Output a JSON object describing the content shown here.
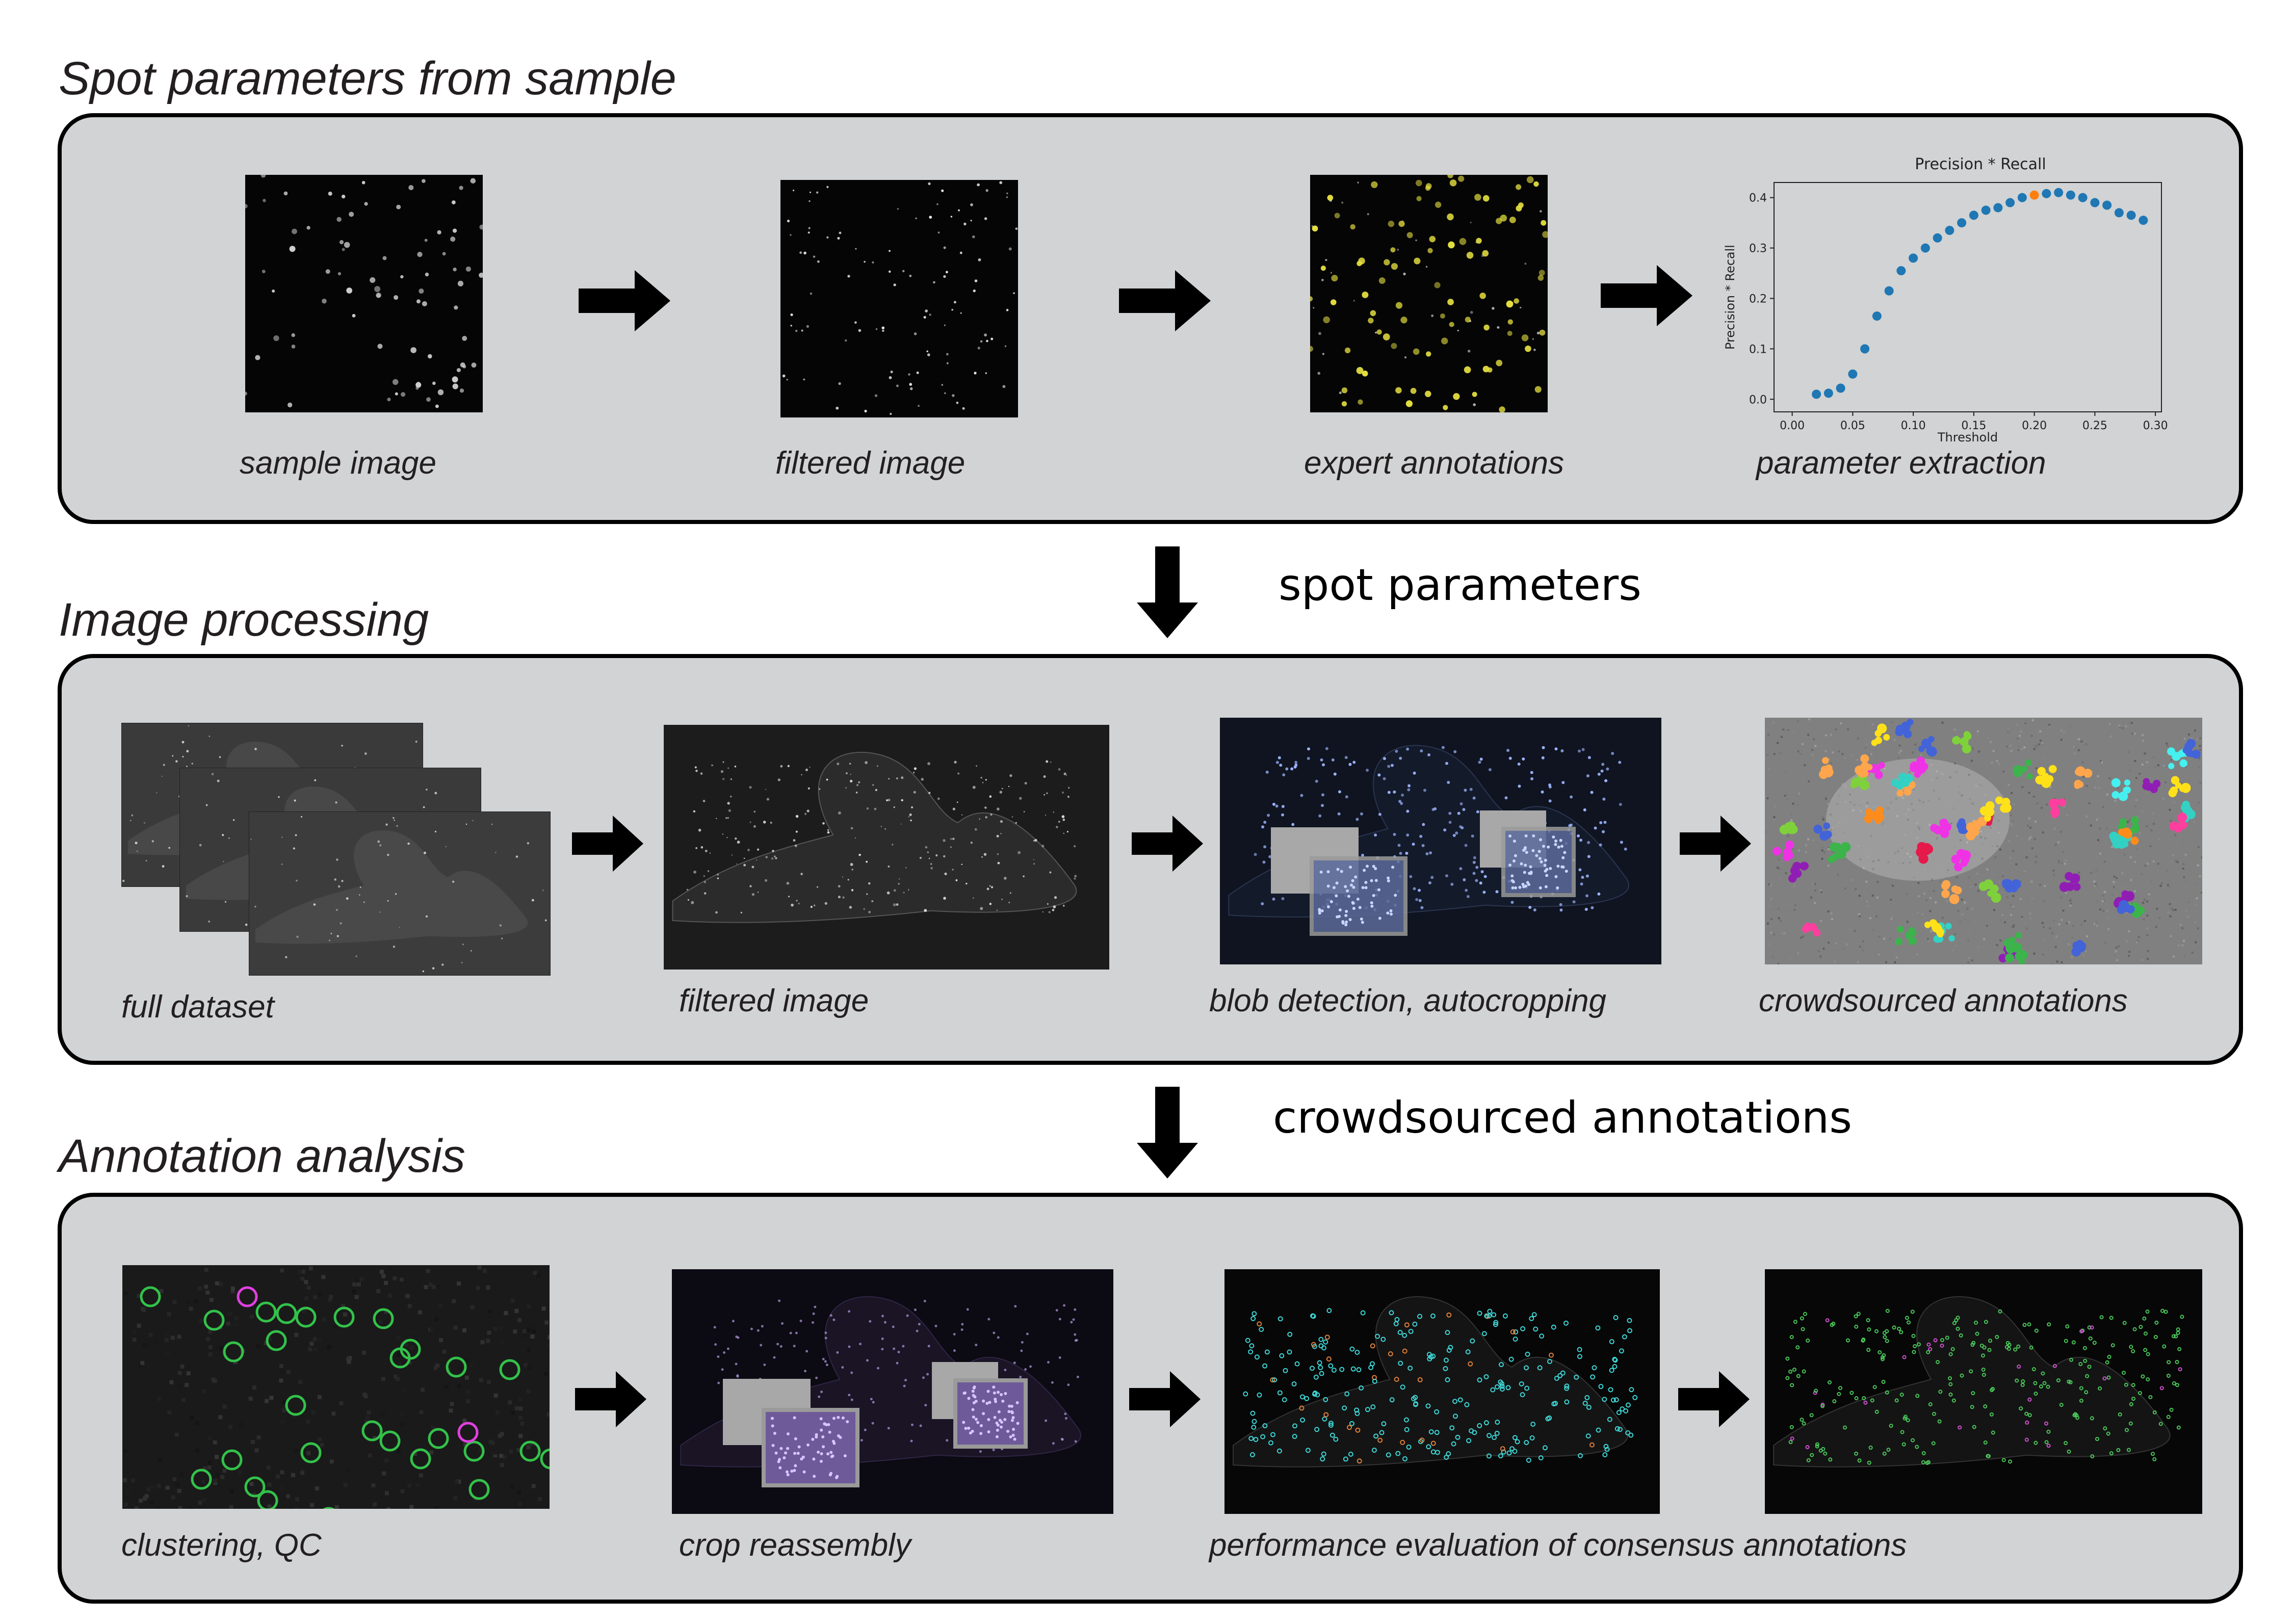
{
  "sections": {
    "spot": {
      "title": "Spot parameters from sample",
      "captions": [
        "sample image",
        "filtered image",
        "expert annotations",
        "parameter extraction"
      ]
    },
    "processing": {
      "title": "Image processing",
      "captions": [
        "full dataset",
        "filtered image",
        "blob detection, autocropping",
        "crowdsourced annotations"
      ]
    },
    "analysis": {
      "title": "Annotation analysis",
      "captions": [
        "clustering, QC",
        "crop reassembly",
        "performance evaluation of consensus annotations"
      ]
    }
  },
  "connectors": {
    "first": "spot parameters",
    "second": "crowdsourced annotations"
  },
  "colors": {
    "panel_bg": "#d1d3d4",
    "point_blue": "#1f77b4",
    "point_highlight": "#ff7f0e",
    "expert_yellow": "#e6e040"
  },
  "chart_data": {
    "type": "scatter",
    "title": "Precision * Recall",
    "xlabel": "Threshold",
    "ylabel": "Precision * Recall",
    "xlim": [
      0.0,
      0.3
    ],
    "ylim": [
      0.0,
      0.4
    ],
    "xticks": [
      "0.00",
      "0.05",
      "0.10",
      "0.15",
      "0.20",
      "0.25",
      "0.30"
    ],
    "yticks": [
      "0.0",
      "0.1",
      "0.2",
      "0.3",
      "0.4"
    ],
    "x": [
      0.02,
      0.03,
      0.04,
      0.05,
      0.06,
      0.07,
      0.08,
      0.09,
      0.1,
      0.11,
      0.12,
      0.13,
      0.14,
      0.15,
      0.16,
      0.17,
      0.18,
      0.19,
      0.2,
      0.21,
      0.22,
      0.23,
      0.24,
      0.25,
      0.26,
      0.27,
      0.28,
      0.29
    ],
    "y": [
      0.01,
      0.012,
      0.022,
      0.05,
      0.1,
      0.165,
      0.215,
      0.255,
      0.28,
      0.3,
      0.32,
      0.335,
      0.35,
      0.365,
      0.375,
      0.38,
      0.39,
      0.4,
      0.405,
      0.408,
      0.41,
      0.405,
      0.4,
      0.39,
      0.385,
      0.37,
      0.365,
      0.355
    ],
    "highlight_index": 18
  }
}
